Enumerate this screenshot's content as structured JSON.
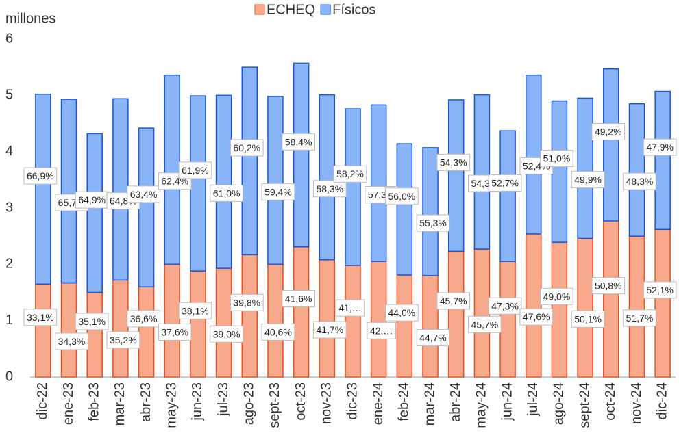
{
  "chart_data": {
    "type": "stacked_bar",
    "y_axis_label": "millones",
    "categories": [
      "dic-22",
      "ene-23",
      "feb-23",
      "mar-23",
      "abr-23",
      "may-23",
      "jun-23",
      "jul-23",
      "ago-23",
      "sept-23",
      "oct-23",
      "nov-23",
      "dic-23",
      "ene-24",
      "feb-24",
      "mar-24",
      "abr-24",
      "may-24",
      "jun-24",
      "jul-24",
      "ago-24",
      "sept-24",
      "oct-24",
      "nov-24",
      "dic-24"
    ],
    "series": [
      {
        "name": "ECHEQ",
        "color": "#f9a98b",
        "stroke": "#e8501e",
        "values": [
          1.65,
          1.67,
          1.5,
          1.72,
          1.6,
          2.0,
          1.88,
          1.93,
          2.17,
          2.0,
          2.31,
          2.08,
          1.98,
          2.05,
          1.81,
          1.8,
          2.23,
          2.27,
          2.05,
          2.54,
          2.39,
          2.46,
          2.77,
          2.5,
          2.62
        ],
        "labels": [
          "33,1%",
          "34,3%",
          "35,1%",
          "35,2%",
          "36,6%",
          "37,6%",
          "38,1%",
          "39,0%",
          "39,8%",
          "40,6%",
          "41,6%",
          "41,7%",
          "41,…",
          "42,…",
          "44,0%",
          "44,7%",
          "45,7%",
          "45,7%",
          "47,3%",
          "47,6%",
          "49,0%",
          "50,1%",
          "50,8%",
          "51,7%",
          "52,1%"
        ]
      },
      {
        "name": "Físicos",
        "color": "#8ab4f8",
        "stroke": "#1a56db",
        "values": [
          3.37,
          3.26,
          2.82,
          3.22,
          2.82,
          3.36,
          3.11,
          3.07,
          3.33,
          2.98,
          3.26,
          2.93,
          2.78,
          2.78,
          2.33,
          2.27,
          2.69,
          2.74,
          2.32,
          2.82,
          2.51,
          2.49,
          2.7,
          2.35,
          2.45
        ],
        "labels": [
          "66,9%",
          "65,7%",
          "64,9%",
          "64,8%",
          "63,4%",
          "62,4%",
          "61,9%",
          "61,0%",
          "60,2%",
          "59,4%",
          "58,4%",
          "58,3%",
          "58,2%",
          "57,3%",
          "56,0%",
          "55,3%",
          "54,3%",
          "54,3%",
          "52,7%",
          "52,4%",
          "51,0%",
          "49,9%",
          "49,2%",
          "48,3%",
          "47,9%"
        ]
      }
    ],
    "ylim": [
      0,
      6
    ],
    "yticks": [
      0,
      1,
      2,
      3,
      4,
      5,
      6
    ],
    "grid": false,
    "legend": "top"
  }
}
